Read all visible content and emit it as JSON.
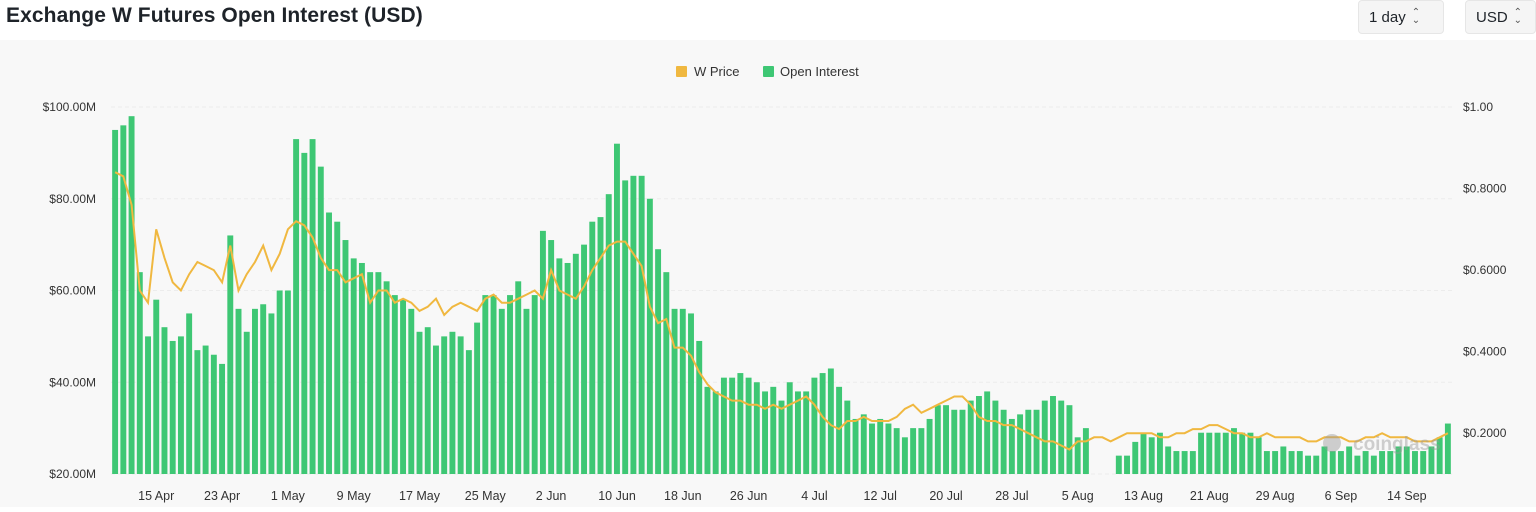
{
  "header": {
    "title": "Exchange W Futures Open Interest (USD)",
    "interval": "1 day",
    "currency": "USD"
  },
  "colors": {
    "open_interest": "#3ec774",
    "price": "#f0b840",
    "grid": "#ececec",
    "axis_text": "#333333"
  },
  "chart_data": {
    "type": "bar",
    "title": "Exchange W Futures Open Interest (USD)",
    "legend_position": "top-center",
    "legend": [
      "W Price",
      "Open Interest"
    ],
    "x_tick_labels": [
      "15 Apr",
      "23 Apr",
      "1 May",
      "9 May",
      "17 May",
      "25 May",
      "2 Jun",
      "10 Jun",
      "18 Jun",
      "26 Jun",
      "4 Jul",
      "12 Jul",
      "20 Jul",
      "28 Jul",
      "5 Aug",
      "13 Aug",
      "21 Aug",
      "29 Aug",
      "6 Sep",
      "14 Sep"
    ],
    "x_tick_index": [
      5,
      13,
      21,
      29,
      37,
      45,
      53,
      61,
      69,
      77,
      85,
      93,
      101,
      109,
      117,
      125,
      133,
      141,
      149,
      157
    ],
    "y_left": {
      "labels": [
        "$20.00M",
        "$40.00M",
        "$60.00M",
        "$80.00M",
        "$100.00M"
      ],
      "min": 20,
      "max": 100,
      "unit": "M USD"
    },
    "y_right": {
      "labels": [
        "$0.2000",
        "$0.4000",
        "$0.6000",
        "$0.8000",
        "$1.00"
      ],
      "min": 0.1,
      "max": 1.0
    },
    "series": [
      {
        "name": "Open Interest",
        "kind": "bar",
        "axis": "left",
        "values": [
          95,
          96,
          98,
          64,
          50,
          58,
          52,
          49,
          50,
          55,
          47,
          48,
          46,
          44,
          72,
          56,
          51,
          56,
          57,
          55,
          60,
          60,
          93,
          90,
          93,
          87,
          77,
          75,
          71,
          67,
          66,
          64,
          64,
          62,
          59,
          58,
          56,
          51,
          52,
          48,
          50,
          51,
          50,
          47,
          53,
          59,
          59,
          56,
          59,
          62,
          56,
          59,
          73,
          71,
          67,
          66,
          68,
          70,
          75,
          76,
          81,
          92,
          84,
          85,
          85,
          80,
          69,
          64,
          56,
          56,
          55,
          49,
          39,
          38,
          41,
          41,
          42,
          41,
          40,
          38,
          39,
          36,
          40,
          38,
          38,
          41,
          42,
          43,
          39,
          36,
          32,
          33,
          31,
          32,
          31,
          30,
          28,
          30,
          30,
          32,
          35,
          35,
          34,
          34,
          36,
          37,
          38,
          36,
          34,
          32,
          33,
          34,
          34,
          36,
          37,
          36,
          35,
          28,
          30,
          20,
          20,
          20,
          24,
          24,
          27,
          29,
          28,
          29,
          26,
          25,
          25,
          25,
          29,
          29,
          29,
          29,
          30,
          29,
          29,
          28,
          25,
          25,
          26,
          25,
          25,
          24,
          24,
          26,
          25,
          25,
          26,
          24,
          25,
          24,
          25,
          25,
          26,
          26,
          25,
          25,
          26,
          28,
          31
        ]
      },
      {
        "name": "W Price",
        "kind": "line",
        "axis": "right",
        "values": [
          0.84,
          0.83,
          0.76,
          0.55,
          0.52,
          0.7,
          0.63,
          0.57,
          0.55,
          0.59,
          0.62,
          0.61,
          0.6,
          0.57,
          0.66,
          0.55,
          0.59,
          0.62,
          0.66,
          0.6,
          0.64,
          0.7,
          0.72,
          0.71,
          0.68,
          0.63,
          0.6,
          0.6,
          0.57,
          0.58,
          0.59,
          0.52,
          0.55,
          0.55,
          0.52,
          0.53,
          0.52,
          0.5,
          0.51,
          0.53,
          0.49,
          0.51,
          0.52,
          0.51,
          0.5,
          0.53,
          0.54,
          0.52,
          0.52,
          0.53,
          0.54,
          0.55,
          0.53,
          0.6,
          0.55,
          0.54,
          0.53,
          0.56,
          0.6,
          0.63,
          0.66,
          0.67,
          0.67,
          0.64,
          0.61,
          0.51,
          0.47,
          0.48,
          0.41,
          0.41,
          0.39,
          0.35,
          0.32,
          0.3,
          0.29,
          0.28,
          0.28,
          0.27,
          0.27,
          0.26,
          0.27,
          0.26,
          0.27,
          0.28,
          0.29,
          0.27,
          0.24,
          0.22,
          0.21,
          0.23,
          0.23,
          0.24,
          0.23,
          0.23,
          0.23,
          0.24,
          0.26,
          0.27,
          0.25,
          0.26,
          0.27,
          0.28,
          0.29,
          0.29,
          0.27,
          0.24,
          0.23,
          0.23,
          0.22,
          0.22,
          0.21,
          0.2,
          0.19,
          0.18,
          0.18,
          0.17,
          0.16,
          0.18,
          0.18,
          0.19,
          0.19,
          0.18,
          0.19,
          0.2,
          0.2,
          0.2,
          0.2,
          0.19,
          0.19,
          0.2,
          0.2,
          0.21,
          0.21,
          0.22,
          0.22,
          0.21,
          0.2,
          0.2,
          0.19,
          0.19,
          0.2,
          0.19,
          0.19,
          0.19,
          0.19,
          0.18,
          0.18,
          0.19,
          0.19,
          0.19,
          0.18,
          0.18,
          0.19,
          0.19,
          0.2,
          0.19,
          0.19,
          0.19,
          0.18,
          0.18,
          0.18,
          0.19,
          0.2
        ]
      }
    ]
  },
  "watermark": "coinglass"
}
